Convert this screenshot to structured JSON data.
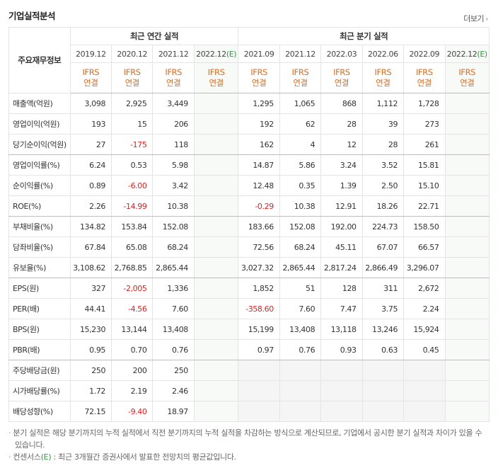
{
  "header": {
    "title": "기업실적분석",
    "more": "더보기"
  },
  "table": {
    "head_label": "주요재무정보",
    "groups": [
      {
        "label": "최근 연간 실적",
        "span": 4
      },
      {
        "label": "최근 분기 실적",
        "span": 6
      }
    ],
    "periods": [
      {
        "label": "2019.12",
        "standard": "IFRS",
        "scope": "연결"
      },
      {
        "label": "2020.12",
        "standard": "IFRS",
        "scope": "연결"
      },
      {
        "label": "2021.12",
        "standard": "IFRS",
        "scope": "연결"
      },
      {
        "label": "2022.12",
        "estimate": "(E)",
        "standard": "IFRS",
        "scope": "연결"
      },
      {
        "label": "2021.09",
        "standard": "IFRS",
        "scope": "연결"
      },
      {
        "label": "2021.12",
        "standard": "IFRS",
        "scope": "연결"
      },
      {
        "label": "2022.03",
        "standard": "IFRS",
        "scope": "연결"
      },
      {
        "label": "2022.06",
        "standard": "IFRS",
        "scope": "연결"
      },
      {
        "label": "2022.09",
        "standard": "IFRS",
        "scope": "연결"
      },
      {
        "label": "2022.12",
        "estimate": "(E)",
        "standard": "IFRS",
        "scope": "연결"
      }
    ],
    "rows": [
      {
        "label": "매출액(억원)",
        "values": [
          "3,098",
          "2,925",
          "3,449",
          null,
          "1,295",
          "1,065",
          "868",
          "1,112",
          "1,728",
          null
        ]
      },
      {
        "label": "영업이익(억원)",
        "values": [
          "193",
          "15",
          "206",
          null,
          "192",
          "62",
          "28",
          "39",
          "273",
          null
        ]
      },
      {
        "label": "당기순이익(억원)",
        "values": [
          "27",
          "-175",
          "118",
          null,
          "162",
          "4",
          "12",
          "28",
          "261",
          null
        ]
      },
      {
        "label": "영업이익률(%)",
        "values": [
          "6.24",
          "0.53",
          "5.98",
          null,
          "14.87",
          "5.86",
          "3.24",
          "3.52",
          "15.81",
          null
        ]
      },
      {
        "label": "순이익률(%)",
        "values": [
          "0.89",
          "-6.00",
          "3.42",
          null,
          "12.48",
          "0.35",
          "1.39",
          "2.50",
          "15.10",
          null
        ]
      },
      {
        "label": "ROE(%)",
        "values": [
          "2.26",
          "-14.99",
          "10.38",
          null,
          "-0.29",
          "10.38",
          "12.91",
          "18.26",
          "22.71",
          null
        ]
      },
      {
        "label": "부채비율(%)",
        "values": [
          "134.82",
          "153.84",
          "152.08",
          null,
          "183.66",
          "152.08",
          "192.00",
          "224.73",
          "158.50",
          null
        ]
      },
      {
        "label": "당좌비율(%)",
        "values": [
          "67.84",
          "65.08",
          "68.24",
          null,
          "72.56",
          "68.24",
          "45.11",
          "67.07",
          "66.57",
          null
        ]
      },
      {
        "label": "유보율(%)",
        "values": [
          "3,108.62",
          "2,768.85",
          "2,865.44",
          null,
          "3,027.32",
          "2,865.44",
          "2,817.24",
          "2,866.49",
          "3,296.07",
          null
        ]
      },
      {
        "label": "EPS(원)",
        "values": [
          "327",
          "-2,005",
          "1,336",
          null,
          "1,852",
          "51",
          "128",
          "311",
          "2,672",
          null
        ]
      },
      {
        "label": "PER(배)",
        "values": [
          "44.41",
          "-4.56",
          "7.60",
          null,
          "-358.60",
          "7.60",
          "7.47",
          "3.75",
          "2.24",
          null
        ]
      },
      {
        "label": "BPS(원)",
        "values": [
          "15,230",
          "13,144",
          "13,408",
          null,
          "15,199",
          "13,408",
          "13,118",
          "13,246",
          "15,924",
          null
        ]
      },
      {
        "label": "PBR(배)",
        "values": [
          "0.95",
          "0.70",
          "0.76",
          null,
          "0.97",
          "0.76",
          "0.93",
          "0.63",
          "0.45",
          null
        ]
      },
      {
        "label": "주당배당금(원)",
        "values": [
          "250",
          "200",
          "250",
          null,
          null,
          null,
          null,
          null,
          null,
          null
        ]
      },
      {
        "label": "시가배당률(%)",
        "values": [
          "1.72",
          "2.19",
          "2.46",
          null,
          null,
          null,
          null,
          null,
          null,
          null
        ]
      },
      {
        "label": "배당성향(%)",
        "values": [
          "72.15",
          "-9.40",
          "18.97",
          null,
          null,
          null,
          null,
          null,
          null,
          null
        ]
      }
    ],
    "group_ends": [
      2,
      5,
      8,
      12
    ]
  },
  "notes": [
    {
      "parts": [
        "분기 실적은 해당 분기까지의 누적 실적에서 직전 분기까지의 누적 실적을 차감하는 방식으로 계산되므로, 기업에서 공시한 분기 실적과 차이가 있을 수 있습니다."
      ]
    },
    {
      "parts": [
        "컨센서스",
        "(E)",
        " : 최근 3개월간 증권사에서 발표한 전망치의 평균값입니다."
      ]
    }
  ]
}
